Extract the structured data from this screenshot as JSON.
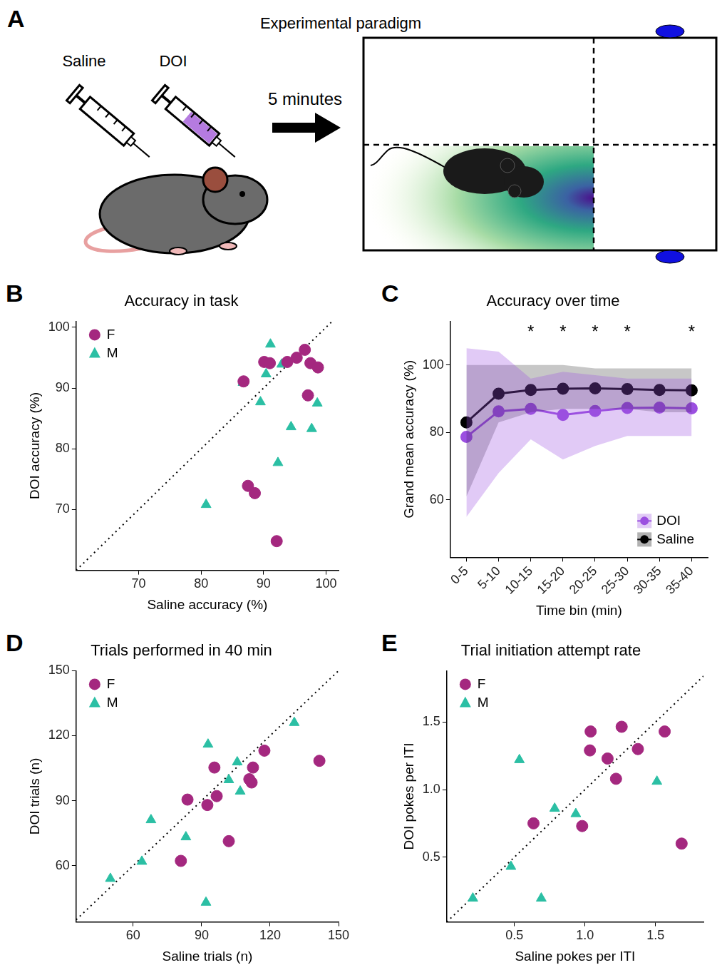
{
  "diagram": {
    "panel": "A",
    "title": "Experimental paradigm",
    "syringes": [
      "Saline",
      "DOI"
    ],
    "arrow_label": "5 minutes"
  },
  "chart_data": [
    {
      "panel": "B",
      "type": "scatter",
      "title": "Accuracy in task",
      "x_label": "Saline accuracy (%)",
      "y_label": "DOI accuracy (%)",
      "xlim": [
        60,
        102
      ],
      "ylim": [
        60,
        101
      ],
      "xticks": [
        70,
        80,
        90,
        100
      ],
      "yticks": [
        70,
        80,
        90,
        100
      ],
      "grid": false,
      "legend": "top-left",
      "series": [
        {
          "name": "F",
          "color": "#a4287f",
          "marker": "circle",
          "x": [
            86.8,
            90.1,
            91.0,
            93.8,
            95.3,
            96.6,
            97.5,
            98.7,
            97.1,
            87.5,
            88.6,
            92.1
          ],
          "y": [
            91.1,
            94.3,
            94.1,
            94.3,
            95.0,
            96.3,
            94.1,
            93.4,
            88.8,
            73.9,
            72.7,
            64.8
          ]
        },
        {
          "name": "M",
          "color": "#2bbfa4",
          "marker": "triangle",
          "x": [
            86.7,
            91.1,
            90.4,
            92.9,
            89.5,
            94.4,
            97.7,
            98.6,
            92.3,
            80.8
          ],
          "y": [
            90.9,
            97.2,
            92.3,
            93.9,
            87.7,
            83.6,
            83.3,
            87.5,
            77.7,
            70.8
          ]
        }
      ]
    },
    {
      "panel": "C",
      "type": "line",
      "title": "Accuracy over time",
      "x_label": "Time bin (min)",
      "y_label": "Grand mean accuracy (%)",
      "categories": [
        "0-5",
        "5-10",
        "10-15",
        "15-20",
        "20-25",
        "25-30",
        "30-35",
        "35-40"
      ],
      "ylim": [
        43,
        113
      ],
      "yticks": [
        60,
        80,
        100
      ],
      "grid": false,
      "legend": "bottom-right",
      "series": [
        {
          "name": "DOI",
          "color": "#9b4fe0",
          "marker": "circle",
          "values": [
            78.7,
            86.3,
            87.0,
            85.2,
            86.4,
            87.3,
            87.4,
            87.2
          ],
          "lower": [
            55,
            68,
            78,
            72,
            76,
            79,
            79,
            79
          ],
          "upper": [
            105,
            104,
            96,
            98,
            97,
            96,
            96,
            96
          ]
        },
        {
          "name": "Saline",
          "color": "#000000",
          "marker": "circle",
          "values": [
            83,
            91.5,
            92.6,
            93,
            93.1,
            92.9,
            92.6,
            92.5
          ],
          "lower": [
            61,
            83,
            86,
            87,
            87,
            87,
            86,
            86
          ],
          "upper": [
            100,
            100,
            100,
            100,
            99,
            99,
            99,
            99
          ]
        }
      ],
      "annotations": [
        {
          "category": "10-15",
          "text": "*"
        },
        {
          "category": "15-20",
          "text": "*"
        },
        {
          "category": "20-25",
          "text": "*"
        },
        {
          "category": "25-30",
          "text": "*"
        },
        {
          "category": "35-40",
          "text": "*"
        }
      ]
    },
    {
      "panel": "D",
      "type": "scatter",
      "title": "Trials performed in 40 min",
      "x_label": "Saline trials (n)",
      "y_label": "DOI trials (n)",
      "xlim": [
        35,
        150
      ],
      "ylim": [
        34,
        150
      ],
      "xticks": [
        60,
        90,
        120,
        150
      ],
      "yticks": [
        60,
        90,
        120,
        150
      ],
      "grid": false,
      "legend": "top-left",
      "series": [
        {
          "name": "F",
          "color": "#a4287f",
          "marker": "circle",
          "x": [
            111.9,
            110.9,
            112.5,
            117.5,
            141.6,
            95.6,
            96.6,
            92.5,
            83.8,
            101.9,
            80.9
          ],
          "y": [
            98.4,
            99.9,
            105.3,
            113.1,
            108.4,
            105.3,
            92.1,
            88.0,
            90.5,
            71.3,
            62.2
          ]
        },
        {
          "name": "M",
          "color": "#2bbfa4",
          "marker": "triangle",
          "x": [
            130.6,
            92.8,
            105.6,
            101.9,
            106.9,
            67.8,
            83.1,
            63.8,
            50.0,
            91.9
          ],
          "y": [
            126.0,
            116.0,
            107.8,
            99.6,
            94.3,
            81.1,
            73.2,
            61.9,
            54.0,
            43.0
          ]
        }
      ]
    },
    {
      "panel": "E",
      "type": "scatter",
      "title": "Trial initiation attempt rate",
      "x_label": "Saline pokes per ITI",
      "y_label": "DOI pokes per ITI",
      "xlim": [
        0.02,
        1.84
      ],
      "ylim": [
        0.02,
        1.88
      ],
      "xticks": [
        0.5,
        {
          "value": 1,
          "label": "1.0"
        },
        1.5
      ],
      "yticks": [
        0.5,
        {
          "value": 1,
          "label": "1.0"
        },
        1.5
      ],
      "grid": false,
      "legend": "top-left",
      "series": [
        {
          "name": "F",
          "color": "#a4287f",
          "marker": "circle",
          "x": [
            1.26,
            1.565,
            1.04,
            1.035,
            1.375,
            1.16,
            1.22,
            0.635,
            0.98,
            1.685
          ],
          "y": [
            1.465,
            1.43,
            1.43,
            1.29,
            1.3,
            1.23,
            1.08,
            0.75,
            0.73,
            0.6
          ]
        },
        {
          "name": "M",
          "color": "#2bbfa4",
          "marker": "triangle",
          "x": [
            0.535,
            1.51,
            0.785,
            0.935,
            0.475,
            0.205,
            0.69
          ],
          "y": [
            1.22,
            1.06,
            0.86,
            0.82,
            0.43,
            0.195,
            0.195
          ]
        }
      ]
    }
  ]
}
